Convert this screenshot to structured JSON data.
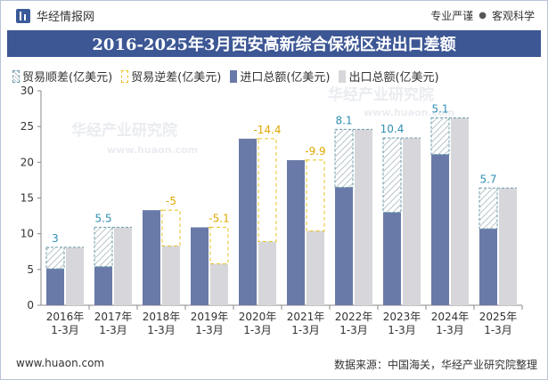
{
  "header": {
    "brand": "华经情报网",
    "tagline_left": "专业严谨",
    "tagline_dot": "●",
    "tagline_right": "客观科学",
    "brand_icon": "bar-chart-icon"
  },
  "watermark": {
    "text": "华经产业研究院",
    "url": "www.huaon.com"
  },
  "footer": {
    "website": "www.huaon.com",
    "source": "数据来源：中国海关，华经产业研究院整理"
  },
  "colors": {
    "title_bg": "#3d5795",
    "import_bar": "#6a7aa8",
    "export_bar": "#d7d7db",
    "surplus_border": "#6a9aaa",
    "deficit_border": "#e8c020"
  },
  "chart_data": {
    "type": "bar",
    "title": "2016-2025年3月西安高新综合保税区进出口差额",
    "categories": [
      "2016年\n1-3月",
      "2017年\n1-3月",
      "2018年\n1-3月",
      "2019年\n1-3月",
      "2020年\n1-3月",
      "2021年\n1-3月",
      "2022年\n1-3月",
      "2023年\n1-3月",
      "2024年\n1-3月",
      "2025年\n1-3月"
    ],
    "series": [
      {
        "name": "贸易顺差(亿美元)",
        "values": [
          3,
          5.5,
          null,
          null,
          null,
          null,
          8.1,
          10.4,
          5.1,
          5.7
        ]
      },
      {
        "name": "贸易逆差(亿美元)",
        "values": [
          null,
          null,
          -5,
          -5.1,
          -14.4,
          -9.9,
          null,
          null,
          null,
          null
        ]
      },
      {
        "name": "进口总额(亿美元)",
        "values": [
          5.1,
          5.4,
          13.3,
          10.9,
          23.3,
          20.3,
          16.5,
          13.0,
          21.1,
          10.7
        ]
      },
      {
        "name": "出口总额(亿美元)",
        "values": [
          8.1,
          10.9,
          8.3,
          5.8,
          8.9,
          10.4,
          24.6,
          23.4,
          26.2,
          16.4
        ]
      }
    ],
    "data_labels": [
      "3",
      "5.5",
      "-5",
      "-5.1",
      "-14.4",
      "-9.9",
      "8.1",
      "10.4",
      "5.1",
      "5.7"
    ],
    "ylim": [
      0,
      30
    ],
    "yticks": [
      0,
      5,
      10,
      15,
      20,
      25,
      30
    ],
    "xlabel": "",
    "ylabel": "",
    "legend_position": "top-left",
    "grid": false
  }
}
